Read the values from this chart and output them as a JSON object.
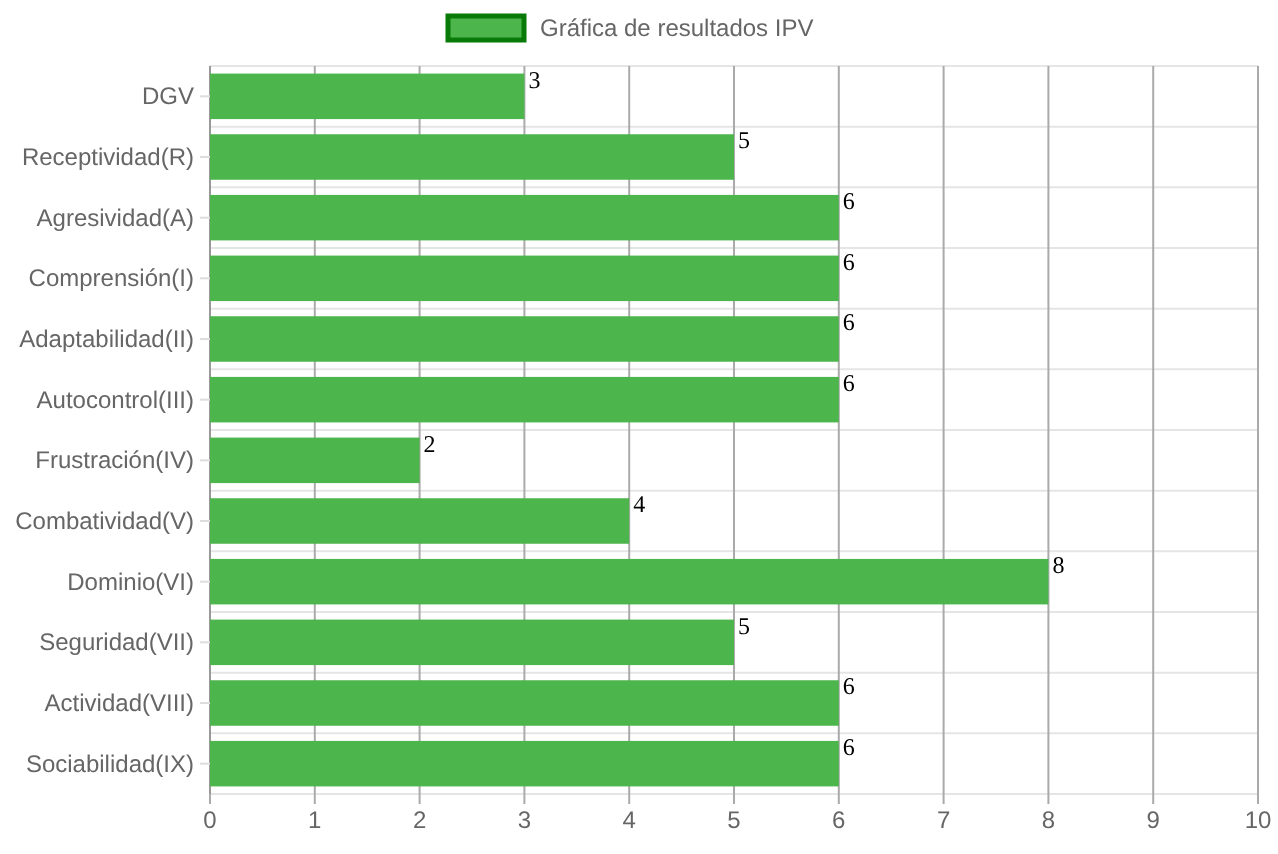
{
  "chart_data": {
    "type": "bar",
    "orientation": "horizontal",
    "categories": [
      "DGV",
      "Receptividad(R)",
      "Agresividad(A)",
      "Comprensión(I)",
      "Adaptabilidad(II)",
      "Autocontrol(III)",
      "Frustración(IV)",
      "Combatividad(V)",
      "Dominio(VI)",
      "Seguridad(VII)",
      "Actividad(VIII)",
      "Sociabilidad(IX)"
    ],
    "series": [
      {
        "name": "Gráfica de resultados IPV",
        "color": "#4cb54c",
        "values": [
          3,
          5,
          6,
          6,
          6,
          6,
          2,
          4,
          8,
          5,
          6,
          6
        ]
      }
    ],
    "xlim": [
      0,
      10
    ],
    "xticks": [
      0,
      1,
      2,
      3,
      4,
      5,
      6,
      7,
      8,
      9,
      10
    ],
    "grid": true,
    "legend": "top",
    "data_labels": true
  }
}
